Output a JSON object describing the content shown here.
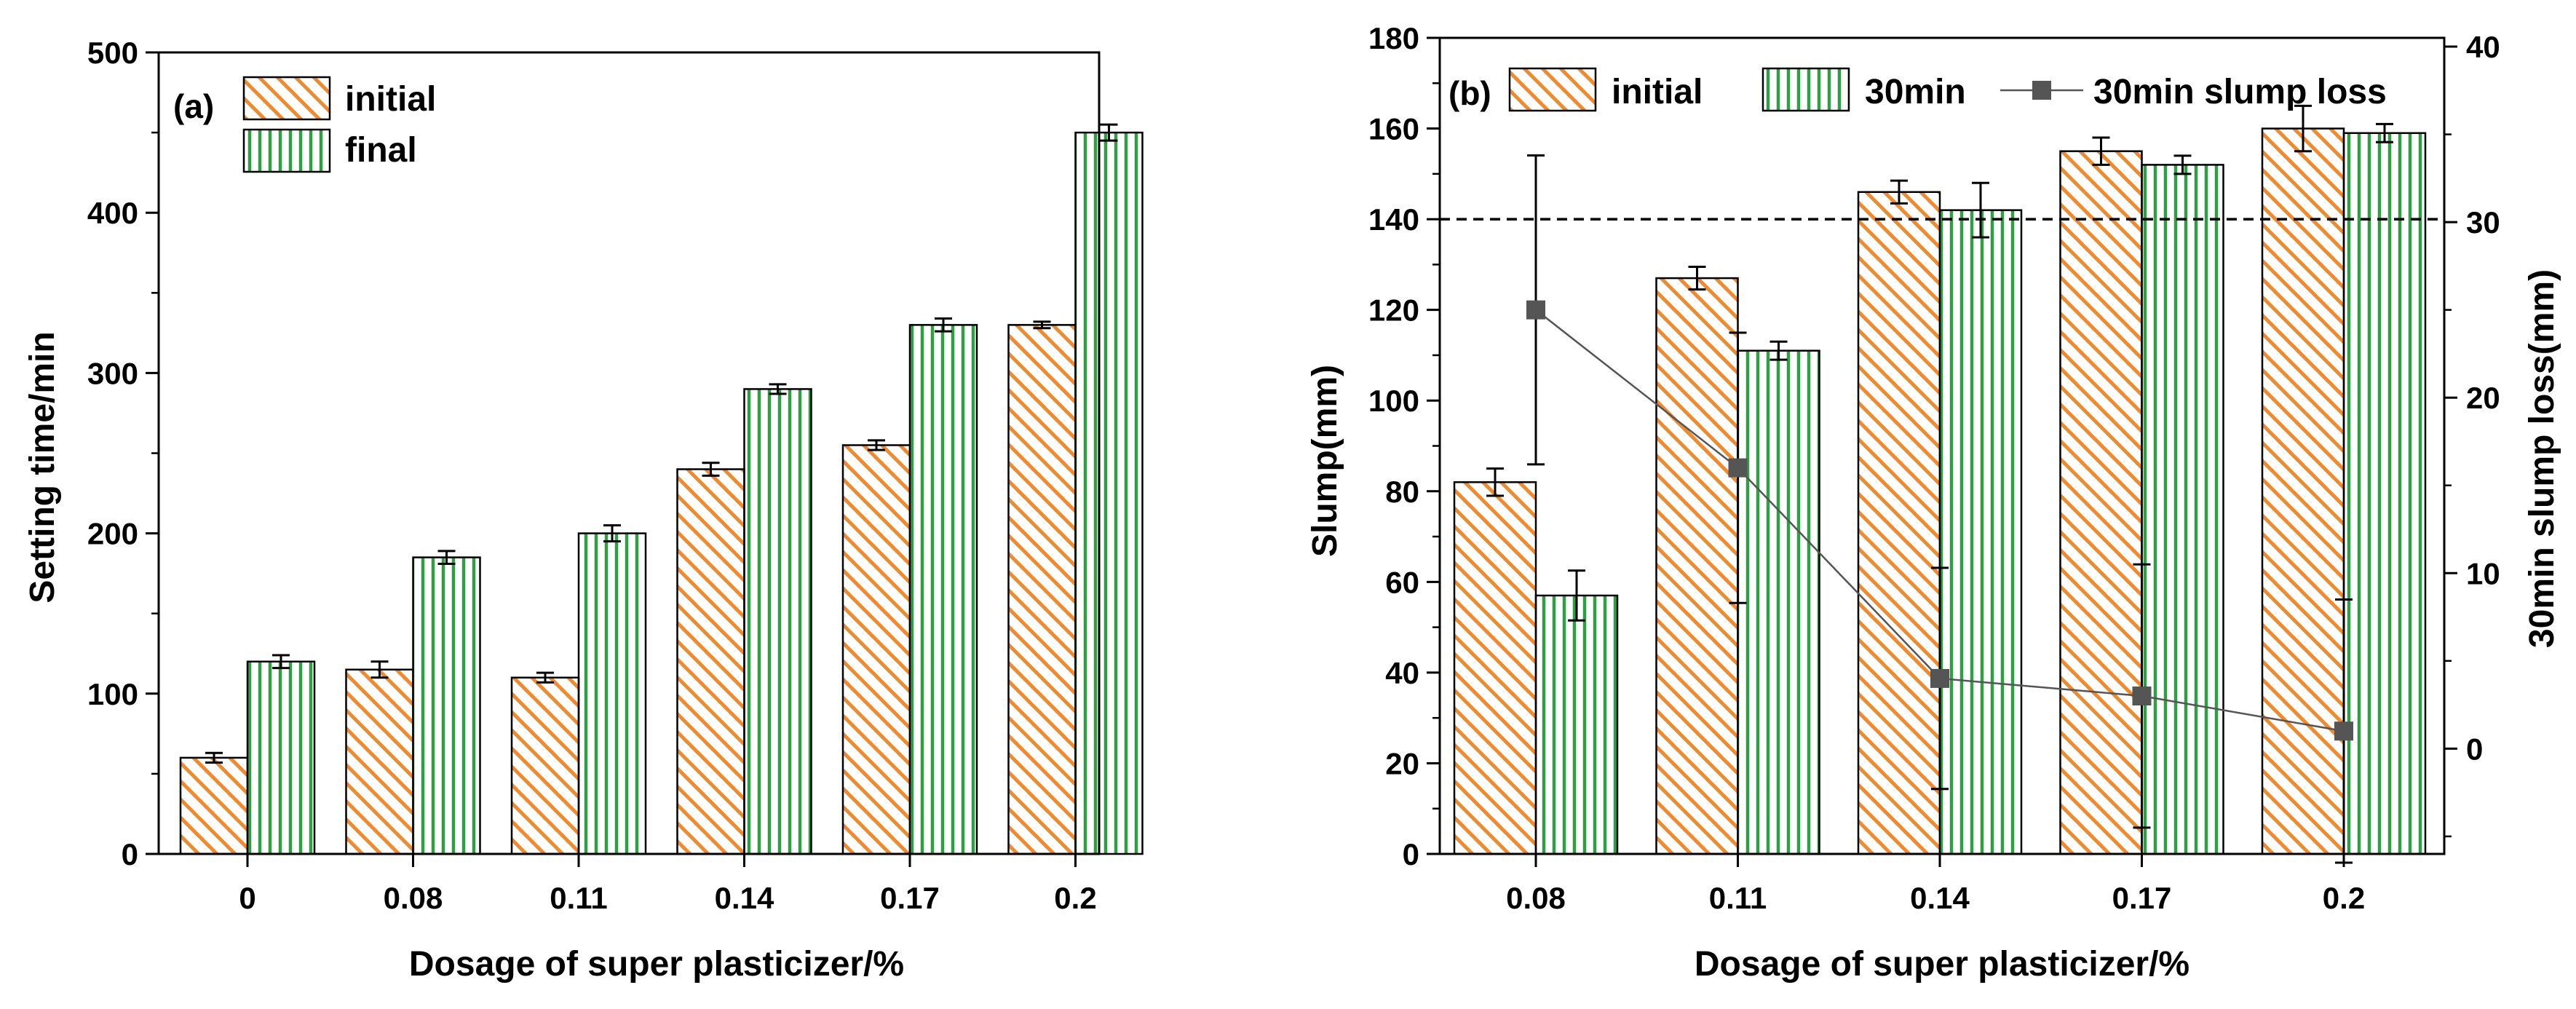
{
  "colors": {
    "initial": "#f08a2c",
    "final": "#2ea043",
    "thirty_min": "#2ea043",
    "loss_line": "#555555",
    "error_bar": "#000000",
    "axis": "#000000"
  },
  "chart_data": [
    {
      "type": "bar",
      "panel_label": "(a)",
      "categories": [
        "0",
        "0.08",
        "0.11",
        "0.14",
        "0.17",
        "0.2"
      ],
      "xlabel": "Dosage of  super plasticizer/%",
      "ylabel": "Setting time/min",
      "ylim": [
        0,
        500
      ],
      "yticks": [
        "0",
        "100",
        "200",
        "300",
        "400",
        "500"
      ],
      "legend_position": "top-left",
      "series": [
        {
          "name": "initial",
          "pattern": "diagonal-hatch",
          "values": [
            60,
            115,
            110,
            240,
            255,
            330
          ],
          "errors": [
            3,
            5,
            3,
            4,
            3,
            2
          ]
        },
        {
          "name": "final",
          "pattern": "vertical-hatch",
          "values": [
            120,
            185,
            200,
            290,
            330,
            450
          ],
          "errors": [
            4,
            4,
            5,
            3,
            4,
            5
          ]
        }
      ]
    },
    {
      "type": "bar",
      "panel_label": "(b)",
      "categories": [
        "0.08",
        "0.11",
        "0.14",
        "0.17",
        "0.2"
      ],
      "xlabel": "Dosage of  super plasticizer/%",
      "ylabel": "Slump(mm)",
      "y2label": "30min slump loss(mm)",
      "ylim": [
        0,
        180
      ],
      "yticks": [
        "0",
        "20",
        "40",
        "60",
        "80",
        "100",
        "120",
        "140",
        "160",
        "180"
      ],
      "y2lim": [
        -6,
        40.5
      ],
      "y2ticks": [
        "0",
        "10",
        "20",
        "30",
        "40"
      ],
      "reference_line": 140,
      "legend_position": "top",
      "series": [
        {
          "name": "initial",
          "pattern": "diagonal-hatch",
          "axis": "left",
          "values": [
            82,
            127,
            146,
            155,
            160
          ],
          "errors": [
            3,
            2.5,
            2.5,
            3,
            5
          ]
        },
        {
          "name": "30min",
          "pattern": "vertical-hatch",
          "axis": "left",
          "values": [
            57,
            111,
            142,
            152,
            159
          ],
          "errors": [
            5.5,
            2,
            6,
            2,
            2
          ]
        },
        {
          "name": "30min slump loss",
          "type": "line",
          "marker": "square",
          "axis": "right",
          "values": [
            25,
            16,
            4,
            3,
            1
          ],
          "errors": [
            8.8,
            7.7,
            6.3,
            7.5,
            7.5
          ]
        }
      ]
    }
  ]
}
